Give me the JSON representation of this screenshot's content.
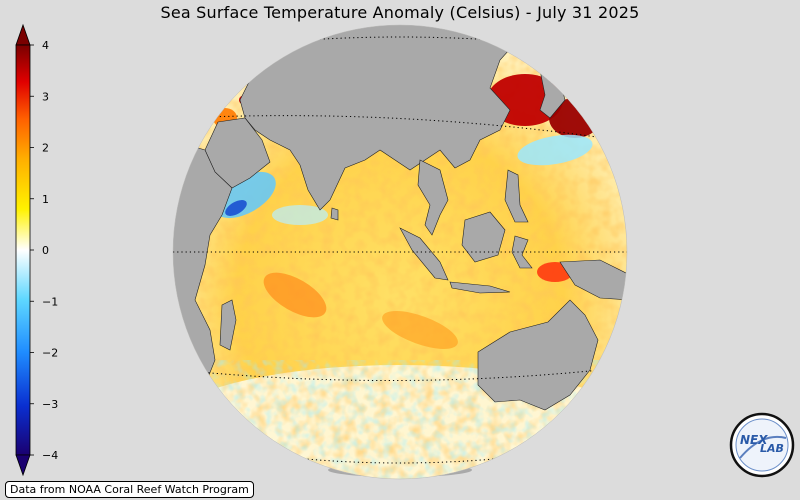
{
  "title": "Sea Surface Temperature Anomaly (Celsius) - July 31 2025",
  "colorbar": {
    "min": -4,
    "max": 4,
    "tick_labels": [
      "4",
      "3",
      "2",
      "1",
      "0",
      "−1",
      "−2",
      "−3",
      "−4"
    ],
    "colors": [
      "#1a0070",
      "#0a2fd0",
      "#1f8cff",
      "#5fd8ff",
      "#ffffff",
      "#fff200",
      "#ffb000",
      "#ff6000",
      "#e00000",
      "#7a0000"
    ]
  },
  "map": {
    "projection": "orthographic",
    "land_color": "#a9a9a9",
    "ocean_colors": {
      "warm": "#ffd24a",
      "hot": "#ff5a1a",
      "neutral": "#fffbe8",
      "cool": "#9be8ff"
    },
    "graticule": "dotted"
  },
  "credit": "Data from NOAA Coral Reef Watch Program",
  "logo": {
    "icon": "nex-lab-logo-icon",
    "text_main": "NEX",
    "text_sub": "LAB"
  }
}
